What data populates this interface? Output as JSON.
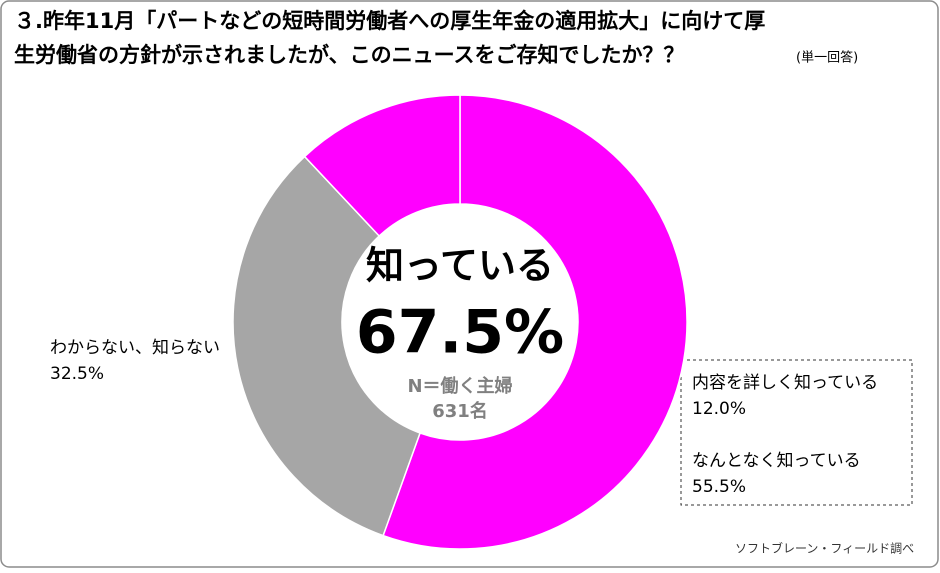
{
  "chart_data": {
    "type": "donut",
    "title": [
      "３.昨年11月「パートなどの短時間労働者への厚生年金の適用拡大」に向けて厚",
      "生労働省の方針が示されましたが、このニュースをご存知でしたか？？"
    ],
    "subtitle": "(単一回答)",
    "categories": [
      "なんとなく知っている",
      "わからない、知らない",
      "内容を詳しく知っている"
    ],
    "values": [
      55.5,
      32.5,
      12.0
    ],
    "value_labels": [
      "55.5%",
      "32.5%",
      "12.0%"
    ],
    "colors": [
      "#ff00ff",
      "#a6a6a6",
      "#ff00ff"
    ],
    "center_title": "知っている",
    "center_value": {
      "value": 67.5,
      "label": "67.5%"
    },
    "sample": [
      "N＝働く主婦",
      "631名"
    ],
    "source": "ソフトブレーン・フィールド調べ"
  }
}
